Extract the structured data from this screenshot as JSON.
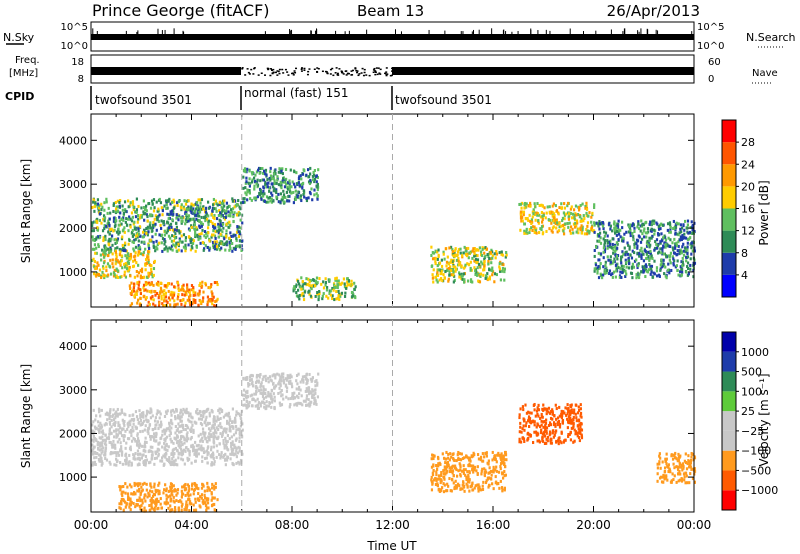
{
  "header": {
    "station": "Prince George (fitACF)",
    "beam": "Beam 13",
    "date": "26/Apr/2013"
  },
  "noise_panel": {
    "left_label": "N.Sky",
    "right_label": "N.Search",
    "left_ticks": [
      "10^5",
      "10^0"
    ],
    "right_ticks": [
      "10^5",
      "10^0"
    ]
  },
  "freq_panel": {
    "left_label_1": "Freq.",
    "left_label_2": "[MHz]",
    "right_label": "Nave",
    "left_ticks": [
      "18",
      "8"
    ],
    "right_ticks": [
      "60",
      "0"
    ]
  },
  "cpid": {
    "label": "CPID",
    "segments": [
      {
        "name": "twofsound 3501",
        "start_h": 0,
        "end_h": 6
      },
      {
        "name": "normal (fast) 151",
        "start_h": 6,
        "end_h": 12
      },
      {
        "name": "twofsound 3501",
        "start_h": 12,
        "end_h": 24
      }
    ]
  },
  "colors": {
    "power": [
      "#0000ff",
      "#1e3caa",
      "#2e8b57",
      "#5fbf5f",
      "#ffcc00",
      "#ff9900",
      "#ff5500",
      "#ff0000"
    ],
    "velocity": [
      "#ff0000",
      "#ff5a00",
      "#ff9a1e",
      "#c8c8c8",
      "#c8c8c8",
      "#5ecb3a",
      "#2e8b57",
      "#1e3caa",
      "#0000aa"
    ]
  },
  "chart_data": [
    {
      "type": "heatmap",
      "name": "power",
      "ylabel": "Slant Range [km]",
      "y_ticks": [
        1000,
        2000,
        3000,
        4000
      ],
      "ylim": [
        200,
        4600
      ],
      "xlim": [
        0,
        24
      ],
      "colorbar_label": "Power [dB]",
      "colorbar_ticks": [
        "4",
        "8",
        "12",
        "16",
        "20",
        "24",
        "28"
      ],
      "clim": [
        0,
        32
      ],
      "echo_bands": [
        {
          "t0": 0,
          "t1": 6,
          "r0": 1500,
          "r1": 2700,
          "v": 12
        },
        {
          "t0": 0,
          "t1": 2.5,
          "r0": 900,
          "r1": 1500,
          "v": 18
        },
        {
          "t0": 1.5,
          "t1": 5,
          "r0": 250,
          "r1": 800,
          "v": 22
        },
        {
          "t0": 6,
          "t1": 9,
          "r0": 2600,
          "r1": 3400,
          "v": 10
        },
        {
          "t0": 8,
          "t1": 10.5,
          "r0": 400,
          "r1": 900,
          "v": 14
        },
        {
          "t0": 13.5,
          "t1": 16.5,
          "r0": 800,
          "r1": 1600,
          "v": 16
        },
        {
          "t0": 17,
          "t1": 20,
          "r0": 1900,
          "r1": 2600,
          "v": 18
        },
        {
          "t0": 20,
          "t1": 24,
          "r0": 900,
          "r1": 2200,
          "v": 10
        }
      ]
    },
    {
      "type": "heatmap",
      "name": "velocity",
      "xlabel": "Time UT",
      "ylabel": "Slant Range [km]",
      "y_ticks": [
        1000,
        2000,
        3000,
        4000
      ],
      "x_ticks": [
        "00:00",
        "04:00",
        "08:00",
        "12:00",
        "16:00",
        "20:00",
        "00:00"
      ],
      "ylim": [
        200,
        4600
      ],
      "xlim": [
        0,
        24
      ],
      "colorbar_label": "Velocity [m s⁻¹]",
      "colorbar_ticks": [
        "1000",
        "500",
        "100",
        "25",
        "−25",
        "−100",
        "−500",
        "−1000"
      ],
      "echo_bands": [
        {
          "t0": 0,
          "t1": 6,
          "r0": 1300,
          "r1": 2600,
          "v": 0
        },
        {
          "t0": 1,
          "t1": 5,
          "r0": 250,
          "r1": 900,
          "v": -150
        },
        {
          "t0": 6,
          "t1": 9,
          "r0": 2600,
          "r1": 3400,
          "v": 0
        },
        {
          "t0": 13.5,
          "t1": 16.5,
          "r0": 700,
          "r1": 1600,
          "v": -150
        },
        {
          "t0": 17,
          "t1": 19.5,
          "r0": 1800,
          "r1": 2700,
          "v": -400
        },
        {
          "t0": 22.5,
          "t1": 24,
          "r0": 900,
          "r1": 1600,
          "v": -150
        }
      ]
    }
  ]
}
